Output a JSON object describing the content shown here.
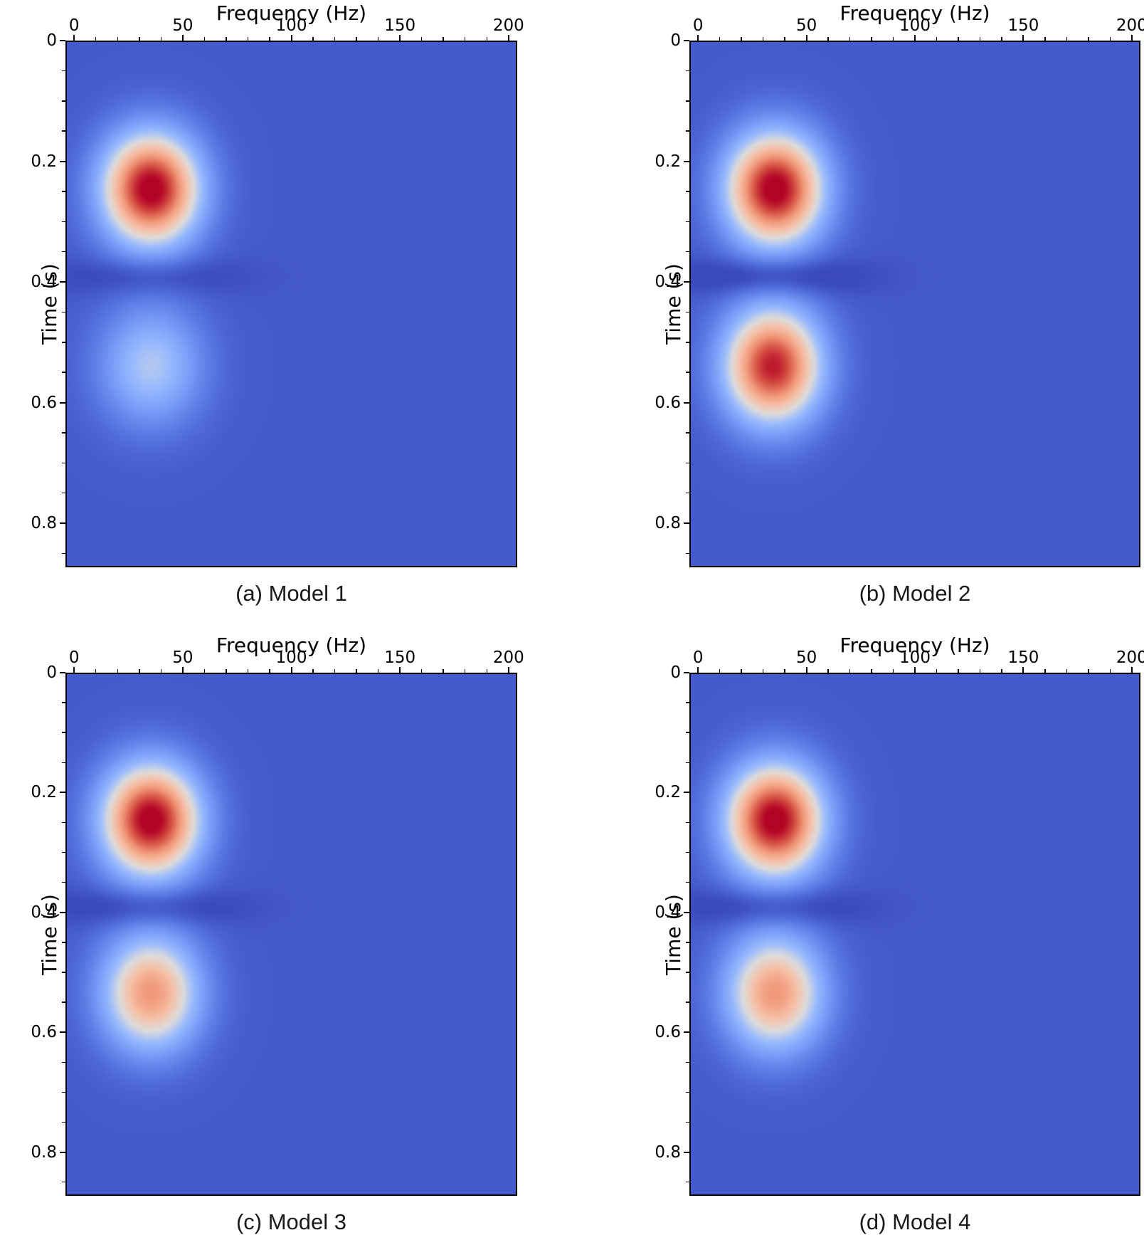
{
  "figure": {
    "background": "#ffffff",
    "axis": {
      "x_label": "Frequency (Hz)",
      "y_label": "Time (s)"
    },
    "panels": [
      {
        "caption": "(a) Model 1"
      },
      {
        "caption": "(b) Model 2"
      },
      {
        "caption": "(c) Model 3"
      },
      {
        "caption": "(d) Model 4"
      }
    ],
    "colormap": {
      "name": "coolwarm",
      "stops": [
        [
          0.0,
          [
            59,
            76,
            192
          ]
        ],
        [
          0.125,
          [
            88,
            118,
            226
          ]
        ],
        [
          0.25,
          [
            120,
            155,
            247
          ]
        ],
        [
          0.375,
          [
            153,
            186,
            254
          ]
        ],
        [
          0.5,
          [
            221,
            220,
            219
          ]
        ],
        [
          0.625,
          [
            246,
            192,
            167
          ]
        ],
        [
          0.75,
          [
            241,
            152,
            121
          ]
        ],
        [
          0.875,
          [
            215,
            85,
            69
          ]
        ],
        [
          1.0,
          [
            180,
            4,
            38
          ]
        ]
      ],
      "below_zero_color": [
        42,
        53,
        150
      ],
      "below_zero_span": 0.25
    }
  },
  "chart_data": [
    {
      "type": "heatmap",
      "label": "(a) Model 1",
      "xlabel": "Frequency (Hz)",
      "ylabel": "Time (s)",
      "xlim": [
        -4,
        204
      ],
      "ylim": [
        0,
        0.873
      ],
      "xticks": {
        "values": [
          0,
          50,
          100,
          150,
          200
        ],
        "labels": [
          "0",
          "50",
          "100",
          "150",
          "200"
        ],
        "minor_step": 10
      },
      "yticks": {
        "values": [
          0,
          0.2,
          0.4,
          0.6,
          0.8
        ],
        "labels": [
          "0",
          "0.2",
          "0.4",
          "0.6",
          "0.8"
        ],
        "minor_step": 0.05
      },
      "colormap": "coolwarm",
      "background_level": 0.04,
      "events": [
        {
          "frequency_hz": 35,
          "time_s": 0.245,
          "amplitude": 1.0,
          "sigma_f_hz": 16,
          "sigma_t_s": 0.066
        },
        {
          "frequency_hz": 35,
          "time_s": 0.54,
          "amplitude": 0.38,
          "sigma_f_hz": 17,
          "sigma_t_s": 0.07
        },
        {
          "frequency_hz": 34,
          "time_s": 0.39,
          "amplitude": -0.12,
          "sigma_f_hz": 26,
          "sigma_t_s": 0.022
        }
      ]
    },
    {
      "type": "heatmap",
      "label": "(b) Model 2",
      "xlabel": "Frequency (Hz)",
      "ylabel": "Time (s)",
      "xlim": [
        -4,
        204
      ],
      "ylim": [
        0,
        0.873
      ],
      "xticks": {
        "values": [
          0,
          50,
          100,
          150,
          200
        ],
        "labels": [
          "0",
          "50",
          "100",
          "150",
          "200"
        ],
        "minor_step": 10
      },
      "yticks": {
        "values": [
          0,
          0.2,
          0.4,
          0.6,
          0.8
        ],
        "labels": [
          "0",
          "0.2",
          "0.4",
          "0.6",
          "0.8"
        ],
        "minor_step": 0.05
      },
      "colormap": "coolwarm",
      "background_level": 0.04,
      "events": [
        {
          "frequency_hz": 35,
          "time_s": 0.245,
          "amplitude": 1.0,
          "sigma_f_hz": 16,
          "sigma_t_s": 0.066
        },
        {
          "frequency_hz": 34,
          "time_s": 0.54,
          "amplitude": 0.93,
          "sigma_f_hz": 16,
          "sigma_t_s": 0.068
        },
        {
          "frequency_hz": 34,
          "time_s": 0.39,
          "amplitude": -0.18,
          "sigma_f_hz": 26,
          "sigma_t_s": 0.022
        }
      ]
    },
    {
      "type": "heatmap",
      "label": "(c) Model 3",
      "xlabel": "Frequency (Hz)",
      "ylabel": "Time (s)",
      "xlim": [
        -4,
        204
      ],
      "ylim": [
        0,
        0.873
      ],
      "xticks": {
        "values": [
          0,
          50,
          100,
          150,
          200
        ],
        "labels": [
          "0",
          "50",
          "100",
          "150",
          "200"
        ],
        "minor_step": 10
      },
      "yticks": {
        "values": [
          0,
          0.2,
          0.4,
          0.6,
          0.8
        ],
        "labels": [
          "0",
          "0.2",
          "0.4",
          "0.6",
          "0.8"
        ],
        "minor_step": 0.05
      },
      "colormap": "coolwarm",
      "background_level": 0.04,
      "events": [
        {
          "frequency_hz": 35,
          "time_s": 0.245,
          "amplitude": 1.0,
          "sigma_f_hz": 16,
          "sigma_t_s": 0.066
        },
        {
          "frequency_hz": 35,
          "time_s": 0.535,
          "amplitude": 0.71,
          "sigma_f_hz": 16,
          "sigma_t_s": 0.068
        },
        {
          "frequency_hz": 34,
          "time_s": 0.39,
          "amplitude": -0.15,
          "sigma_f_hz": 26,
          "sigma_t_s": 0.022
        }
      ]
    },
    {
      "type": "heatmap",
      "label": "(d) Model 4",
      "xlabel": "Frequency (Hz)",
      "ylabel": "Time (s)",
      "xlim": [
        -4,
        204
      ],
      "ylim": [
        0,
        0.873
      ],
      "xticks": {
        "values": [
          0,
          50,
          100,
          150,
          200
        ],
        "labels": [
          "0",
          "50",
          "100",
          "150",
          "200"
        ],
        "minor_step": 10
      },
      "yticks": {
        "values": [
          0,
          0.2,
          0.4,
          0.6,
          0.8
        ],
        "labels": [
          "0",
          "0.2",
          "0.4",
          "0.6",
          "0.8"
        ],
        "minor_step": 0.05
      },
      "colormap": "coolwarm",
      "background_level": 0.04,
      "events": [
        {
          "frequency_hz": 35,
          "time_s": 0.245,
          "amplitude": 1.0,
          "sigma_f_hz": 16,
          "sigma_t_s": 0.066
        },
        {
          "frequency_hz": 35,
          "time_s": 0.535,
          "amplitude": 0.71,
          "sigma_f_hz": 16,
          "sigma_t_s": 0.068
        },
        {
          "frequency_hz": 34,
          "time_s": 0.39,
          "amplitude": -0.15,
          "sigma_f_hz": 26,
          "sigma_t_s": 0.022
        }
      ]
    }
  ]
}
